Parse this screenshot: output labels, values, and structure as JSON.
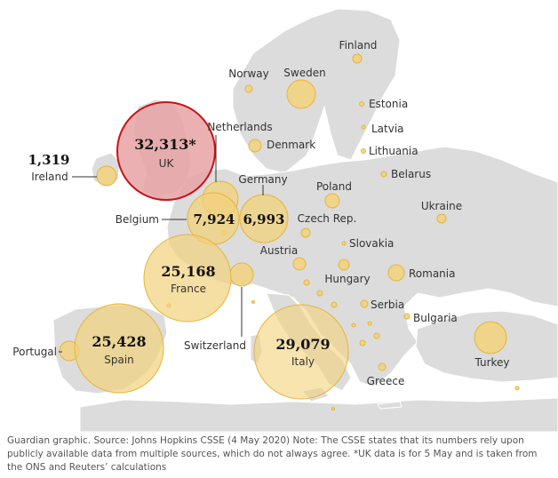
{
  "colors": {
    "land": "#dcdcdc",
    "land_stroke": "#ffffff",
    "bubble_fill": "#f2d27a",
    "bubble_stroke": "#e7b43a",
    "uk_fill": "#e6a2a5",
    "uk_stroke": "#c7141b",
    "text": "#121212"
  },
  "countries": [
    {
      "id": "uk",
      "name": "UK",
      "value": "32,313*"
    },
    {
      "id": "ireland",
      "name": "Ireland",
      "value": "1,319"
    },
    {
      "id": "belgium",
      "name": "Belgium",
      "value": "7,924"
    },
    {
      "id": "germany",
      "name": "Germany",
      "value": "6,993"
    },
    {
      "id": "france",
      "name": "France",
      "value": "25,168"
    },
    {
      "id": "spain",
      "name": "Spain",
      "value": "25,428"
    },
    {
      "id": "italy",
      "name": "Italy",
      "value": "29,079"
    },
    {
      "id": "netherlands",
      "name": "Netherlands",
      "value": ""
    },
    {
      "id": "portugal",
      "name": "Portugal",
      "value": ""
    },
    {
      "id": "switzerland",
      "name": "Switzerland",
      "value": ""
    },
    {
      "id": "finland",
      "name": "Finland",
      "value": ""
    },
    {
      "id": "norway",
      "name": "Norway",
      "value": ""
    },
    {
      "id": "sweden",
      "name": "Sweden",
      "value": ""
    },
    {
      "id": "denmark",
      "name": "Denmark",
      "value": ""
    },
    {
      "id": "estonia",
      "name": "Estonia",
      "value": ""
    },
    {
      "id": "latvia",
      "name": "Latvia",
      "value": ""
    },
    {
      "id": "lithuania",
      "name": "Lithuania",
      "value": ""
    },
    {
      "id": "belarus",
      "name": "Belarus",
      "value": ""
    },
    {
      "id": "poland",
      "name": "Poland",
      "value": ""
    },
    {
      "id": "ukraine",
      "name": "Ukraine",
      "value": ""
    },
    {
      "id": "czech",
      "name": "Czech Rep.",
      "value": ""
    },
    {
      "id": "slovakia",
      "name": "Slovakia",
      "value": ""
    },
    {
      "id": "austria",
      "name": "Austria",
      "value": ""
    },
    {
      "id": "hungary",
      "name": "Hungary",
      "value": ""
    },
    {
      "id": "romania",
      "name": "Romania",
      "value": ""
    },
    {
      "id": "serbia",
      "name": "Serbia",
      "value": ""
    },
    {
      "id": "bulgaria",
      "name": "Bulgaria",
      "value": ""
    },
    {
      "id": "greece",
      "name": "Greece",
      "value": ""
    },
    {
      "id": "turkey",
      "name": "Turkey",
      "value": ""
    }
  ],
  "footer": "Guardian graphic. Source: Johns Hopkins CSSE (4 May 2020) Note: The CSSE states that its numbers rely upon publicly available data from multiple sources, which do not always agree. *UK data is for 5 May and is taken from the ONS and Reuters’ calculations"
}
